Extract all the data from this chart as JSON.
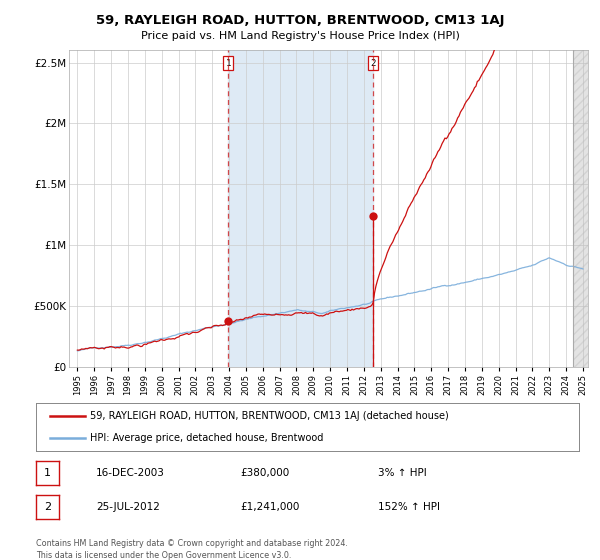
{
  "title": "59, RAYLEIGH ROAD, HUTTON, BRENTWOOD, CM13 1AJ",
  "subtitle": "Price paid vs. HM Land Registry's House Price Index (HPI)",
  "legend_line1": "59, RAYLEIGH ROAD, HUTTON, BRENTWOOD, CM13 1AJ (detached house)",
  "legend_line2": "HPI: Average price, detached house, Brentwood",
  "transaction1_date": "16-DEC-2003",
  "transaction1_price": 380000,
  "transaction1_label": "3% ↑ HPI",
  "transaction2_date": "25-JUL-2012",
  "transaction2_price": 1241000,
  "transaction2_label": "152% ↑ HPI",
  "footnote": "Contains HM Land Registry data © Crown copyright and database right 2024.\nThis data is licensed under the Open Government Licence v3.0.",
  "hpi_color": "#7aaddb",
  "price_color": "#cc1111",
  "sale_marker_color": "#cc1111",
  "background_color": "#ffffff",
  "grid_color": "#cccccc",
  "shaded_region_color": "#deeaf5",
  "year_start": 1995,
  "year_end": 2025,
  "ylim_max": 2600000,
  "yticks": [
    0,
    500000,
    1000000,
    1500000,
    2000000,
    2500000
  ],
  "ytick_labels": [
    "£0",
    "£500K",
    "£1M",
    "£1.5M",
    "£2M",
    "£2.5M"
  ],
  "sale1_t": 2003.958,
  "sale2_t": 2012.542
}
